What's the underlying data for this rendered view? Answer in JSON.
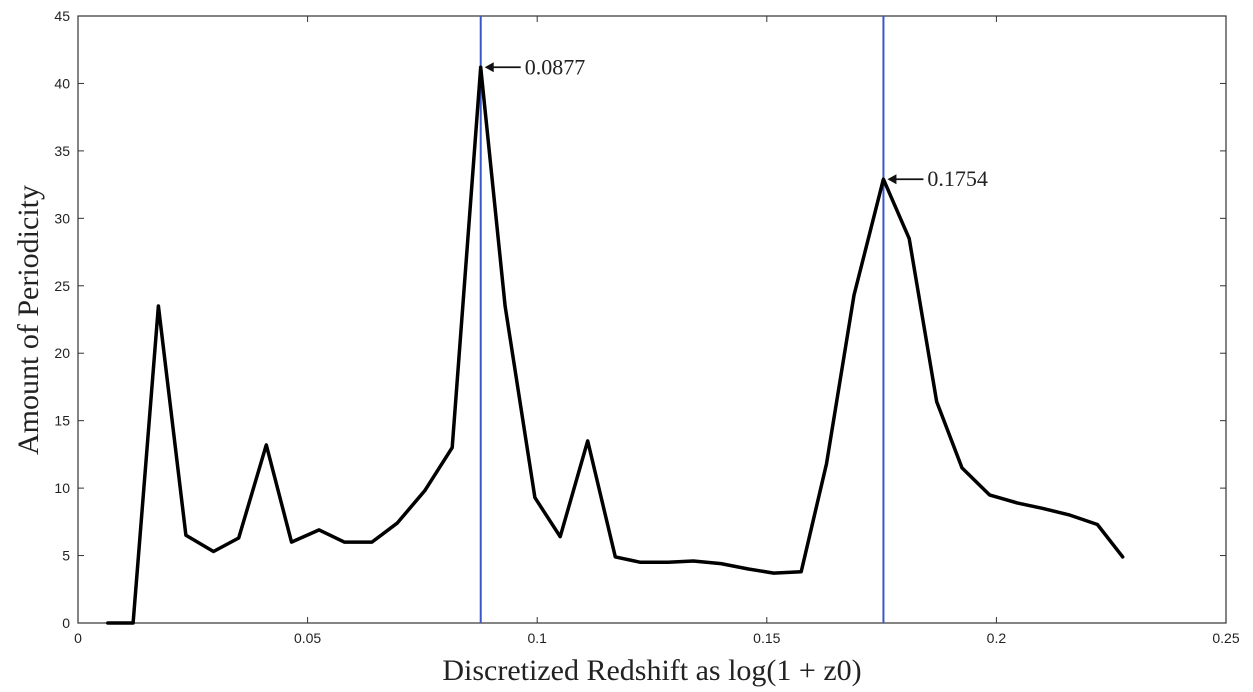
{
  "chart_data": {
    "type": "line",
    "title": "",
    "xlabel": "Discretized Redshift as log(1 + z0)",
    "ylabel": "Amount of Periodicity",
    "xlim": [
      0,
      0.25
    ],
    "ylim": [
      0,
      45
    ],
    "xticks": [
      0,
      0.05,
      0.1,
      0.15,
      0.2,
      0.25
    ],
    "xtick_labels": [
      "0",
      "0.05",
      "0.1",
      "0.15",
      "0.2",
      "0.25"
    ],
    "yticks": [
      0,
      5,
      10,
      15,
      20,
      25,
      30,
      35,
      40,
      45
    ],
    "ytick_labels": [
      "0",
      "5",
      "10",
      "15",
      "20",
      "25",
      "30",
      "35",
      "40",
      "45"
    ],
    "grid": false,
    "series": [
      {
        "color": "#000000",
        "x": [
          0.0065,
          0.012,
          0.0175,
          0.0235,
          0.0295,
          0.035,
          0.041,
          0.0465,
          0.0525,
          0.058,
          0.064,
          0.0695,
          0.0755,
          0.0815,
          0.0877,
          0.093,
          0.0995,
          0.105,
          0.111,
          0.117,
          0.1225,
          0.1285,
          0.134,
          0.14,
          0.146,
          0.1515,
          0.1575,
          0.163,
          0.169,
          0.1754,
          0.181,
          0.187,
          0.1925,
          0.1985,
          0.2045,
          0.21,
          0.216,
          0.222,
          0.2275
        ],
        "y": [
          0,
          0,
          23.5,
          6.5,
          5.3,
          6.3,
          13.2,
          6.0,
          6.9,
          6.0,
          6.0,
          7.4,
          9.8,
          13.0,
          41.2,
          23.5,
          9.3,
          6.4,
          13.5,
          4.9,
          4.5,
          4.5,
          4.6,
          4.4,
          4.0,
          3.7,
          3.8,
          11.8,
          24.3,
          32.9,
          28.5,
          16.4,
          11.5,
          9.5,
          8.9,
          8.5,
          8.0,
          7.3,
          4.9
        ]
      }
    ],
    "vlines": [
      {
        "x": 0.0877,
        "color": "#3a56c8"
      },
      {
        "x": 0.1754,
        "color": "#3a56c8"
      }
    ],
    "annotations": [
      {
        "text": "0.0877",
        "x": 0.0877,
        "y": 41.2
      },
      {
        "text": "0.1754",
        "x": 0.1754,
        "y": 32.9
      }
    ]
  }
}
